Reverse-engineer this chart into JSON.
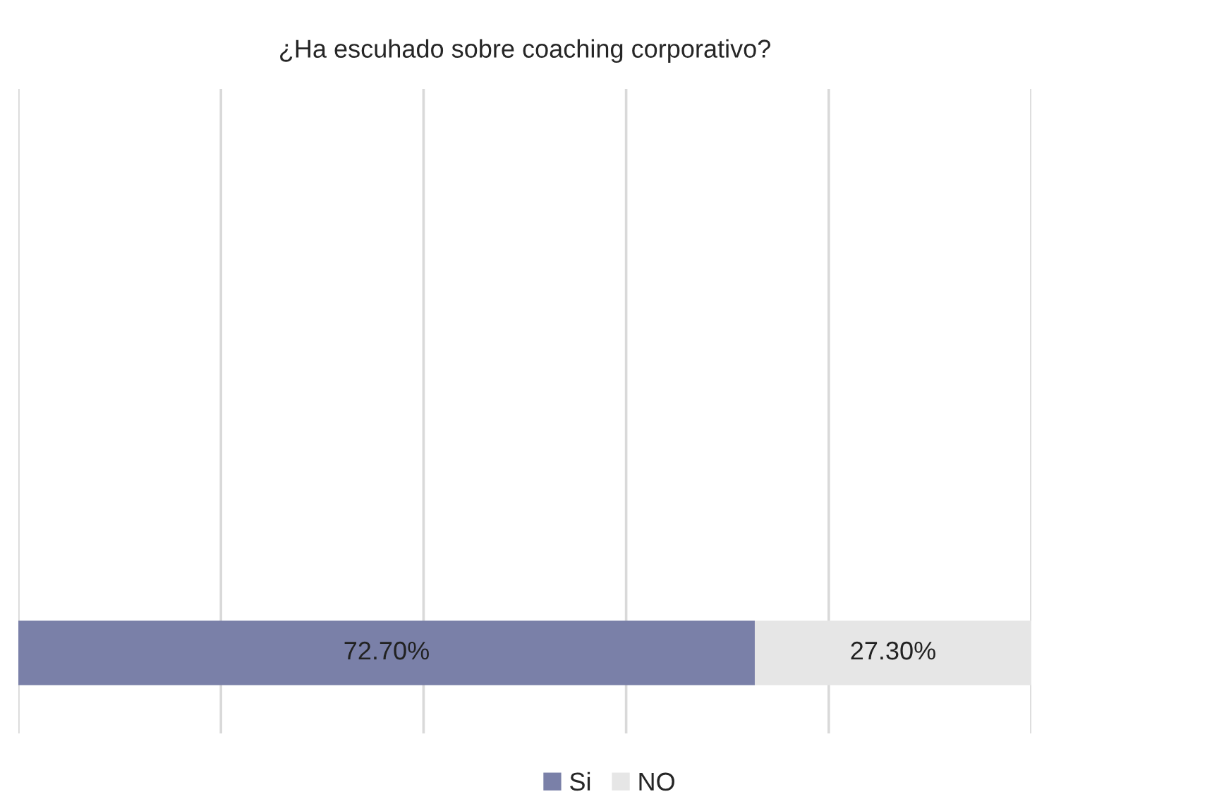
{
  "chart_data": {
    "type": "bar",
    "orientation": "horizontal",
    "stacked": true,
    "title": "¿Ha escuhado sobre coaching corporativo?",
    "categories": [
      null
    ],
    "series": [
      {
        "name": "Si",
        "color": "#7a80a8",
        "values": [
          72.7
        ],
        "value_labels": [
          "72.70%"
        ]
      },
      {
        "name": "NO",
        "color": "#e6e6e6",
        "values": [
          27.3
        ],
        "value_labels": [
          "27.30%"
        ]
      }
    ],
    "xlim": [
      0,
      100
    ],
    "xticks": [
      {
        "value": 0,
        "label": null
      },
      {
        "value": 20,
        "label": null
      },
      {
        "value": 40,
        "label": null
      },
      {
        "value": 60,
        "label": null
      },
      {
        "value": 80,
        "label": null
      },
      {
        "value": 100,
        "label": null
      }
    ],
    "grid": "x",
    "legend": "bottom"
  }
}
